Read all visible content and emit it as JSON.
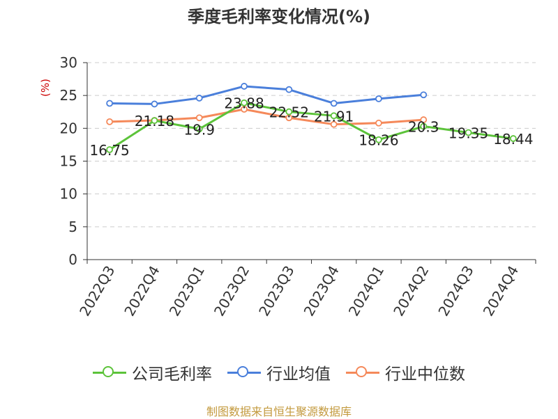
{
  "chart_data": {
    "type": "line",
    "title": "季度毛利率变化情况(%)",
    "ylabel": "(%)",
    "xlabel": "",
    "ylim": [
      0,
      30
    ],
    "yticks": [
      0,
      5,
      10,
      15,
      20,
      25,
      30
    ],
    "grid": true,
    "legend_position": "bottom",
    "categories": [
      "2022Q3",
      "2022Q4",
      "2023Q1",
      "2023Q2",
      "2023Q3",
      "2023Q4",
      "2024Q1",
      "2024Q2",
      "2024Q3",
      "2024Q4"
    ],
    "series": [
      {
        "name": "公司毛利率",
        "color": "#5cc33a",
        "values": [
          16.75,
          21.18,
          19.9,
          23.88,
          22.52,
          21.91,
          18.26,
          20.3,
          19.35,
          18.44
        ],
        "data_labels": [
          "16.75",
          "21.18",
          "19.9",
          "23.88",
          "22.52",
          "21.91",
          "18.26",
          "20.3",
          "19.35",
          "18.44"
        ]
      },
      {
        "name": "行业均值",
        "color": "#4a7fdb",
        "values": [
          23.8,
          23.7,
          24.6,
          26.4,
          25.9,
          23.8,
          24.5,
          25.1,
          null,
          null
        ]
      },
      {
        "name": "行业中位数",
        "color": "#f5895a",
        "values": [
          21.0,
          21.2,
          21.6,
          22.9,
          21.6,
          20.6,
          20.8,
          21.3,
          null,
          null
        ]
      }
    ]
  },
  "colors": {
    "unit_label": "#cc0000",
    "source_note": "#c39a3e",
    "axis": "#333333",
    "grid": "#cccccc"
  },
  "source_note": "制图数据来自恒生聚源数据库"
}
